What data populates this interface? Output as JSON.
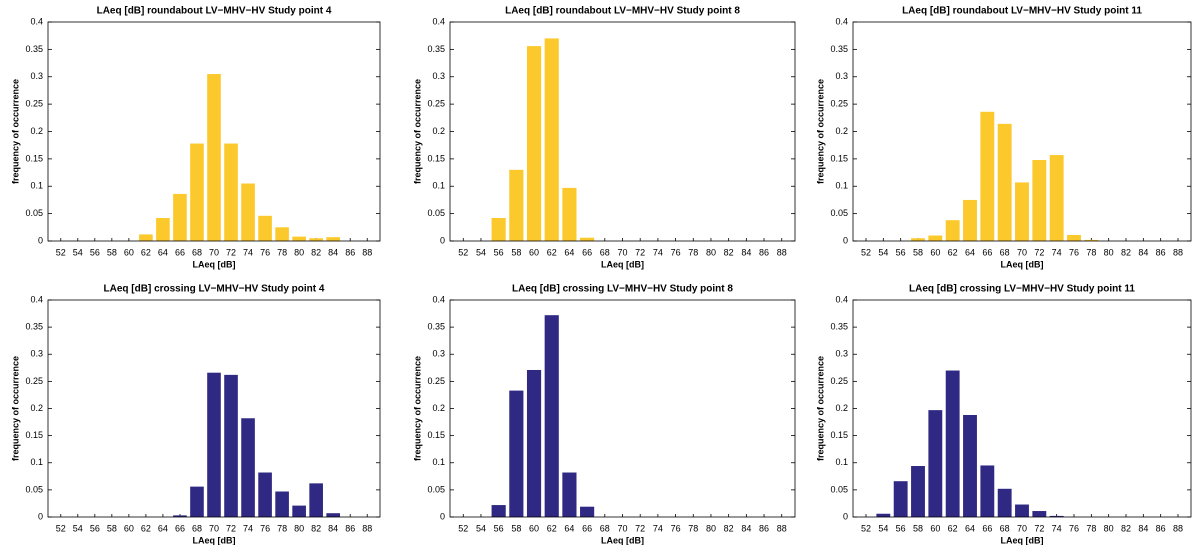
{
  "chart_data": [
    {
      "type": "bar",
      "title": "LAeq [dB] roundabout LV−MHV−HV Study point 4",
      "xlabel": "LAeq [dB]",
      "ylabel": "frequency of occurrence",
      "categories": [
        "52",
        "54",
        "56",
        "58",
        "60",
        "62",
        "64",
        "66",
        "68",
        "70",
        "72",
        "74",
        "76",
        "78",
        "80",
        "82",
        "84",
        "86",
        "88"
      ],
      "values": [
        0,
        0,
        0,
        0,
        0,
        0.012,
        0.042,
        0.086,
        0.178,
        0.305,
        0.178,
        0.105,
        0.046,
        0.025,
        0.008,
        0.005,
        0.007,
        0,
        0
      ],
      "color": "#fbc92c",
      "ylim": [
        0,
        0.4
      ],
      "yticks": [
        0,
        0.05,
        0.1,
        0.15,
        0.2,
        0.25,
        0.3,
        0.35,
        0.4
      ]
    },
    {
      "type": "bar",
      "title": "LAeq [dB] roundabout LV−MHV−HV Study point 8",
      "xlabel": "LAeq [dB]",
      "ylabel": "frequency of occurrence",
      "categories": [
        "52",
        "54",
        "56",
        "58",
        "60",
        "62",
        "64",
        "66",
        "68",
        "70",
        "72",
        "74",
        "76",
        "78",
        "80",
        "82",
        "84",
        "86",
        "88"
      ],
      "values": [
        0,
        0,
        0.042,
        0.13,
        0.356,
        0.37,
        0.097,
        0.006,
        0,
        0,
        0,
        0,
        0,
        0,
        0,
        0,
        0,
        0,
        0
      ],
      "color": "#fbc92c",
      "ylim": [
        0,
        0.4
      ],
      "yticks": [
        0,
        0.05,
        0.1,
        0.15,
        0.2,
        0.25,
        0.3,
        0.35,
        0.4
      ]
    },
    {
      "type": "bar",
      "title": "LAeq [dB] roundabout LV−MHV−HV Study point 11",
      "xlabel": "LAeq [dB]",
      "ylabel": "frequency of occurrence",
      "categories": [
        "52",
        "54",
        "56",
        "58",
        "60",
        "62",
        "64",
        "66",
        "68",
        "70",
        "72",
        "74",
        "76",
        "78",
        "80",
        "82",
        "84",
        "86",
        "88"
      ],
      "values": [
        0,
        0,
        0,
        0.005,
        0.01,
        0.038,
        0.075,
        0.236,
        0.214,
        0.107,
        0.148,
        0.157,
        0.011,
        0.002,
        0,
        0,
        0,
        0,
        0
      ],
      "color": "#fbc92c",
      "ylim": [
        0,
        0.4
      ],
      "yticks": [
        0,
        0.05,
        0.1,
        0.15,
        0.2,
        0.25,
        0.3,
        0.35,
        0.4
      ]
    },
    {
      "type": "bar",
      "title": "LAeq [dB] crossing LV−MHV−HV Study point 4",
      "xlabel": "LAeq [dB]",
      "ylabel": "frequency of occurrence",
      "categories": [
        "52",
        "54",
        "56",
        "58",
        "60",
        "62",
        "64",
        "66",
        "68",
        "70",
        "72",
        "74",
        "76",
        "78",
        "80",
        "82",
        "84",
        "86",
        "88"
      ],
      "values": [
        0,
        0,
        0,
        0,
        0,
        0,
        0,
        0.003,
        0.056,
        0.266,
        0.262,
        0.182,
        0.082,
        0.047,
        0.021,
        0.062,
        0.007,
        0,
        0
      ],
      "color": "#2f2983",
      "ylim": [
        0,
        0.4
      ],
      "yticks": [
        0,
        0.05,
        0.1,
        0.15,
        0.2,
        0.25,
        0.3,
        0.35,
        0.4
      ]
    },
    {
      "type": "bar",
      "title": "LAeq [dB] crossing LV−MHV−HV Study point 8",
      "xlabel": "LAeq [dB]",
      "ylabel": "frequency of occurrence",
      "categories": [
        "52",
        "54",
        "56",
        "58",
        "60",
        "62",
        "64",
        "66",
        "68",
        "70",
        "72",
        "74",
        "76",
        "78",
        "80",
        "82",
        "84",
        "86",
        "88"
      ],
      "values": [
        0,
        0,
        0.022,
        0.233,
        0.271,
        0.372,
        0.082,
        0.019,
        0,
        0,
        0,
        0,
        0,
        0,
        0,
        0,
        0,
        0,
        0
      ],
      "color": "#2f2983",
      "ylim": [
        0,
        0.4
      ],
      "yticks": [
        0,
        0.05,
        0.1,
        0.15,
        0.2,
        0.25,
        0.3,
        0.35,
        0.4
      ]
    },
    {
      "type": "bar",
      "title": "LAeq [dB] crossing LV−MHV−HV Study point 11",
      "xlabel": "LAeq [dB]",
      "ylabel": "frequency of occurrence",
      "categories": [
        "52",
        "54",
        "56",
        "58",
        "60",
        "62",
        "64",
        "66",
        "68",
        "70",
        "72",
        "74",
        "76",
        "78",
        "80",
        "82",
        "84",
        "86",
        "88"
      ],
      "values": [
        0,
        0.006,
        0.066,
        0.094,
        0.197,
        0.27,
        0.188,
        0.095,
        0.052,
        0.023,
        0.011,
        0.002,
        0,
        0,
        0,
        0,
        0,
        0,
        0
      ],
      "color": "#2f2983",
      "ylim": [
        0,
        0.4
      ],
      "yticks": [
        0,
        0.05,
        0.1,
        0.15,
        0.2,
        0.25,
        0.3,
        0.35,
        0.4
      ]
    }
  ]
}
